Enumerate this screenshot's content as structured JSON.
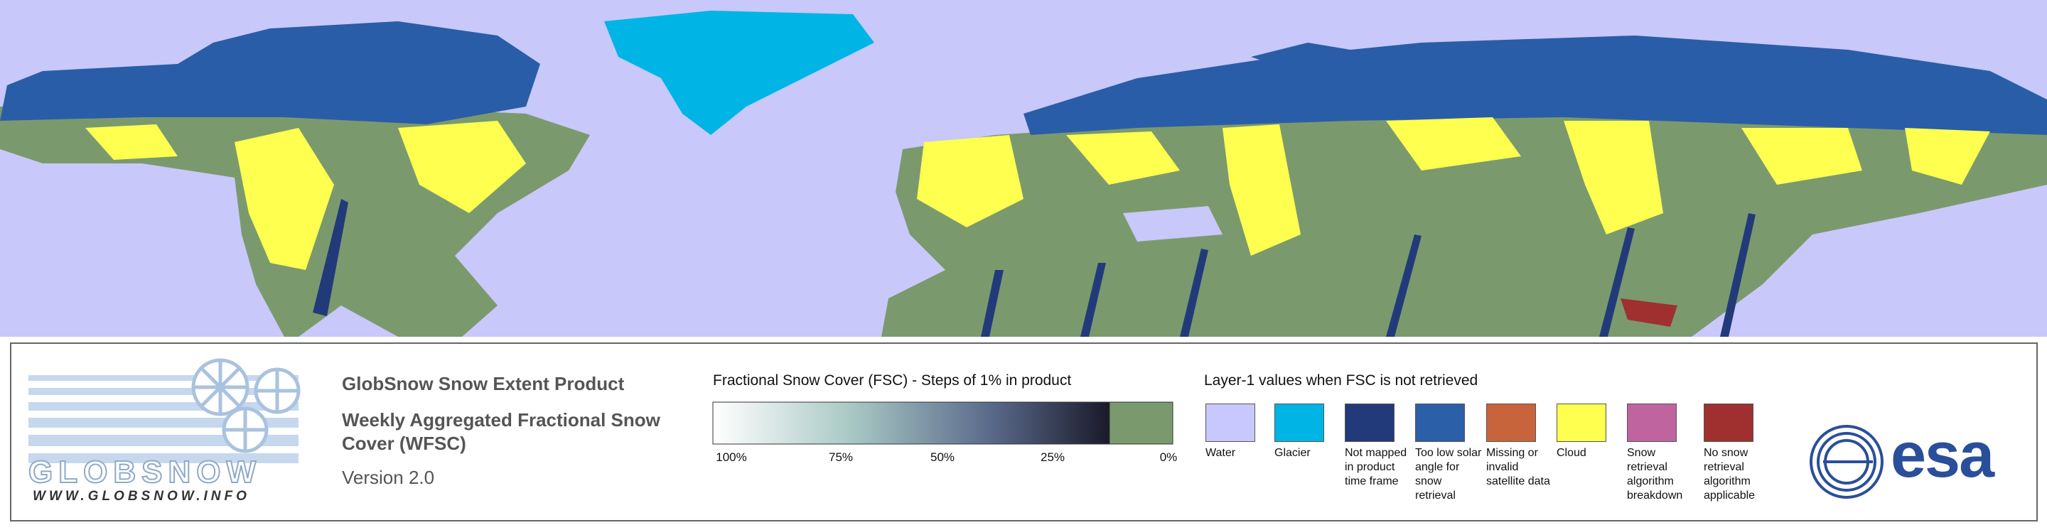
{
  "logo": {
    "name": "GLOBSNOW",
    "url": "WWW.GLOBSNOW.INFO"
  },
  "product": {
    "title": "GlobSnow Snow Extent Product",
    "subtitle": "Weekly Aggregated Fractional Snow Cover (WFSC)",
    "version": "Version 2.0"
  },
  "fsc_legend": {
    "title": "Fractional Snow Cover (FSC) - Steps of 1% in product",
    "tick_labels": [
      "100%",
      "75%",
      "50%",
      "25%",
      "0%"
    ]
  },
  "layer1_legend": {
    "title": "Layer-1 values when FSC is not retrieved",
    "items": [
      {
        "label": "Water",
        "color": "#c8c8ff"
      },
      {
        "label": "Glacier",
        "color": "#00b4e6"
      },
      {
        "label": "Not mapped in product time frame",
        "color": "#233a7a"
      },
      {
        "label": "Too low solar angle for snow retrieval",
        "color": "#2b5fa8"
      },
      {
        "label": "Missing or invalid satellite data",
        "color": "#c8643c"
      },
      {
        "label": "Cloud",
        "color": "#ffff50"
      },
      {
        "label": "Snow retrieval algorithm breakdown",
        "color": "#c064a0"
      },
      {
        "label": "No snow retrieval algorithm applicable",
        "color": "#a03030"
      }
    ]
  },
  "esa_logo": "esa"
}
